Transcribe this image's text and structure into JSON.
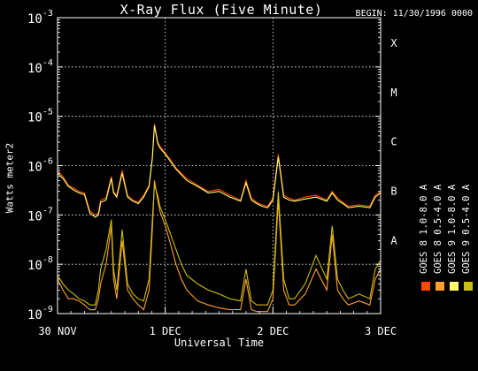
{
  "title": "X-Ray Flux (Five Minute)",
  "begin": "BEGIN: 11/30/1996 0000",
  "chart_data": {
    "type": "line",
    "xlabel": "Universal Time",
    "ylabel": "Watts meter2",
    "x_ticks": [
      "30 NOV",
      "1 DEC",
      "2 DEC",
      "3 DEC"
    ],
    "xlim_days": [
      0,
      3
    ],
    "ylim": [
      1e-09,
      0.001
    ],
    "yscale": "log",
    "y_tick_labels": [
      {
        "exp": "-9",
        "value": 1e-09
      },
      {
        "exp": "-8",
        "value": 1e-08
      },
      {
        "exp": "-7",
        "value": 1e-07
      },
      {
        "exp": "-6",
        "value": 1e-06
      },
      {
        "exp": "-5",
        "value": 1e-05
      },
      {
        "exp": "-4",
        "value": 0.0001
      },
      {
        "exp": "-3",
        "value": 0.001
      }
    ],
    "flare_classes": [
      {
        "label": "A",
        "value": 1e-08
      },
      {
        "label": "B",
        "value": 1e-07
      },
      {
        "label": "C",
        "value": 1e-06
      },
      {
        "label": "M",
        "value": 1e-05
      },
      {
        "label": "X",
        "value": 0.0001
      }
    ],
    "grid": "dotted",
    "legend": [
      {
        "label": "GOES 8 1.0-8.0 A",
        "color": "#ff4a00"
      },
      {
        "label": "GOES 8 0.5-4.0 A",
        "color": "#ffa030"
      },
      {
        "label": "GOES 9 1.0-8.0 A",
        "color": "#ffff70"
      },
      {
        "label": "GOES 9 0.5-4.0 A",
        "color": "#c8c000"
      }
    ],
    "series": [
      {
        "name": "GOES 8 1.0-8.0 A",
        "color": "#ff4a00",
        "x": [
          0,
          0.05,
          0.1,
          0.15,
          0.2,
          0.25,
          0.3,
          0.35,
          0.38,
          0.4,
          0.45,
          0.5,
          0.52,
          0.55,
          0.6,
          0.65,
          0.7,
          0.75,
          0.8,
          0.85,
          0.88,
          0.9,
          0.93,
          0.95,
          1.0,
          1.05,
          1.1,
          1.15,
          1.2,
          1.3,
          1.4,
          1.5,
          1.6,
          1.7,
          1.75,
          1.8,
          1.85,
          1.9,
          1.95,
          2.0,
          2.05,
          2.1,
          2.15,
          2.2,
          2.3,
          2.4,
          2.5,
          2.55,
          2.6,
          2.65,
          2.7,
          2.8,
          2.9,
          2.95,
          3.0
        ],
        "y": [
          8e-07,
          6e-07,
          4e-07,
          3.5e-07,
          3e-07,
          2.8e-07,
          1.2e-07,
          1e-07,
          1.1e-07,
          2e-07,
          2.2e-07,
          6e-07,
          3e-07,
          2.5e-07,
          8e-07,
          2.5e-07,
          2e-07,
          1.8e-07,
          2.5e-07,
          4e-07,
          1.5e-06,
          7e-06,
          3e-06,
          2.5e-06,
          1.8e-06,
          1.3e-06,
          9e-07,
          7e-07,
          5.5e-07,
          4e-07,
          3e-07,
          3.3e-07,
          2.5e-07,
          2e-07,
          5e-07,
          2.2e-07,
          1.8e-07,
          1.6e-07,
          1.5e-07,
          2.2e-07,
          1.7e-06,
          2.5e-07,
          2.2e-07,
          2e-07,
          2.3e-07,
          2.5e-07,
          2e-07,
          3e-07,
          2.2e-07,
          1.8e-07,
          1.5e-07,
          1.6e-07,
          1.5e-07,
          2.5e-07,
          3e-07
        ]
      },
      {
        "name": "GOES 8 0.5-4.0 A",
        "color": "#ffa030",
        "x": [
          0,
          0.05,
          0.1,
          0.15,
          0.2,
          0.25,
          0.3,
          0.35,
          0.38,
          0.4,
          0.45,
          0.5,
          0.52,
          0.55,
          0.6,
          0.65,
          0.7,
          0.75,
          0.8,
          0.85,
          0.88,
          0.9,
          0.93,
          0.95,
          1.0,
          1.05,
          1.1,
          1.15,
          1.2,
          1.3,
          1.4,
          1.5,
          1.6,
          1.7,
          1.75,
          1.8,
          1.85,
          1.9,
          1.95,
          2.0,
          2.05,
          2.1,
          2.15,
          2.2,
          2.3,
          2.4,
          2.5,
          2.55,
          2.6,
          2.65,
          2.7,
          2.8,
          2.9,
          2.95,
          3.0
        ],
        "y": [
          5e-09,
          3e-09,
          2e-09,
          2e-09,
          1.8e-09,
          1.5e-09,
          1.2e-09,
          1.2e-09,
          2e-09,
          4e-09,
          1e-08,
          6e-08,
          5e-09,
          2e-09,
          3e-08,
          3e-09,
          2e-09,
          1.5e-09,
          1.2e-09,
          3e-09,
          5e-08,
          5e-07,
          2e-07,
          1.2e-07,
          6e-08,
          2.5e-08,
          1e-08,
          5e-09,
          3e-09,
          1.8e-09,
          1.5e-09,
          1.3e-09,
          1.2e-09,
          1.2e-09,
          5e-09,
          1.2e-09,
          1.1e-09,
          1.1e-09,
          1.1e-09,
          2e-09,
          2e-07,
          3e-09,
          1.5e-09,
          1.5e-09,
          2.5e-09,
          8e-09,
          3e-09,
          4e-08,
          3e-09,
          2e-09,
          1.5e-09,
          1.8e-09,
          1.5e-09,
          5e-09,
          8e-09
        ]
      },
      {
        "name": "GOES 9 1.0-8.0 A",
        "color": "#ffff70",
        "x": [
          0,
          0.05,
          0.1,
          0.15,
          0.2,
          0.25,
          0.3,
          0.35,
          0.38,
          0.4,
          0.45,
          0.5,
          0.52,
          0.55,
          0.6,
          0.65,
          0.7,
          0.75,
          0.8,
          0.85,
          0.88,
          0.9,
          0.93,
          0.95,
          1.0,
          1.05,
          1.1,
          1.15,
          1.2,
          1.3,
          1.4,
          1.5,
          1.6,
          1.7,
          1.75,
          1.8,
          1.85,
          1.9,
          1.95,
          2.0,
          2.05,
          2.1,
          2.15,
          2.2,
          2.3,
          2.4,
          2.5,
          2.55,
          2.6,
          2.65,
          2.7,
          2.8,
          2.9,
          2.95,
          3.0
        ],
        "y": [
          7e-07,
          5.5e-07,
          3.8e-07,
          3.2e-07,
          2.8e-07,
          2.6e-07,
          1.1e-07,
          9e-08,
          1e-07,
          1.8e-07,
          2e-07,
          5.5e-07,
          2.8e-07,
          2.3e-07,
          7e-07,
          2.3e-07,
          1.9e-07,
          1.7e-07,
          2.3e-07,
          3.8e-07,
          1.4e-06,
          6.5e-06,
          2.8e-06,
          2.3e-06,
          1.7e-06,
          1.2e-06,
          8.5e-07,
          6.5e-07,
          5e-07,
          3.8e-07,
          2.8e-07,
          3e-07,
          2.3e-07,
          1.9e-07,
          4.5e-07,
          2e-07,
          1.7e-07,
          1.5e-07,
          1.4e-07,
          2e-07,
          1.5e-06,
          2.3e-07,
          2e-07,
          1.9e-07,
          2.1e-07,
          2.3e-07,
          1.9e-07,
          2.8e-07,
          2e-07,
          1.7e-07,
          1.4e-07,
          1.5e-07,
          1.4e-07,
          2.3e-07,
          2.8e-07
        ]
      },
      {
        "name": "GOES 9 0.5-4.0 A",
        "color": "#c8c000",
        "x": [
          0,
          0.05,
          0.1,
          0.15,
          0.2,
          0.25,
          0.3,
          0.35,
          0.38,
          0.4,
          0.45,
          0.5,
          0.52,
          0.55,
          0.6,
          0.65,
          0.7,
          0.75,
          0.8,
          0.85,
          0.88,
          0.9,
          0.93,
          0.95,
          1.0,
          1.05,
          1.1,
          1.15,
          1.2,
          1.3,
          1.4,
          1.5,
          1.6,
          1.7,
          1.75,
          1.8,
          1.85,
          1.9,
          1.95,
          2.0,
          2.05,
          2.1,
          2.15,
          2.2,
          2.3,
          2.4,
          2.5,
          2.55,
          2.6,
          2.65,
          2.7,
          2.8,
          2.9,
          2.95,
          3.0
        ],
        "y": [
          6e-09,
          4e-09,
          3e-09,
          2.5e-09,
          2e-09,
          1.8e-09,
          1.5e-09,
          1.5e-09,
          3e-09,
          8e-09,
          2e-08,
          8e-08,
          8e-09,
          3e-09,
          5e-08,
          4e-09,
          2.5e-09,
          2e-09,
          1.8e-09,
          5e-09,
          8e-08,
          4e-07,
          2.5e-07,
          1.5e-07,
          8e-08,
          4e-08,
          2e-08,
          1e-08,
          6e-09,
          4e-09,
          3e-09,
          2.5e-09,
          2e-09,
          1.8e-09,
          8e-09,
          1.8e-09,
          1.5e-09,
          1.5e-09,
          1.5e-09,
          3e-09,
          3e-07,
          5e-09,
          2e-09,
          2e-09,
          4e-09,
          1.5e-08,
          5e-09,
          6e-08,
          5e-09,
          3e-09,
          2e-09,
          2.5e-09,
          2e-09,
          8e-09,
          1.2e-08
        ]
      }
    ]
  }
}
